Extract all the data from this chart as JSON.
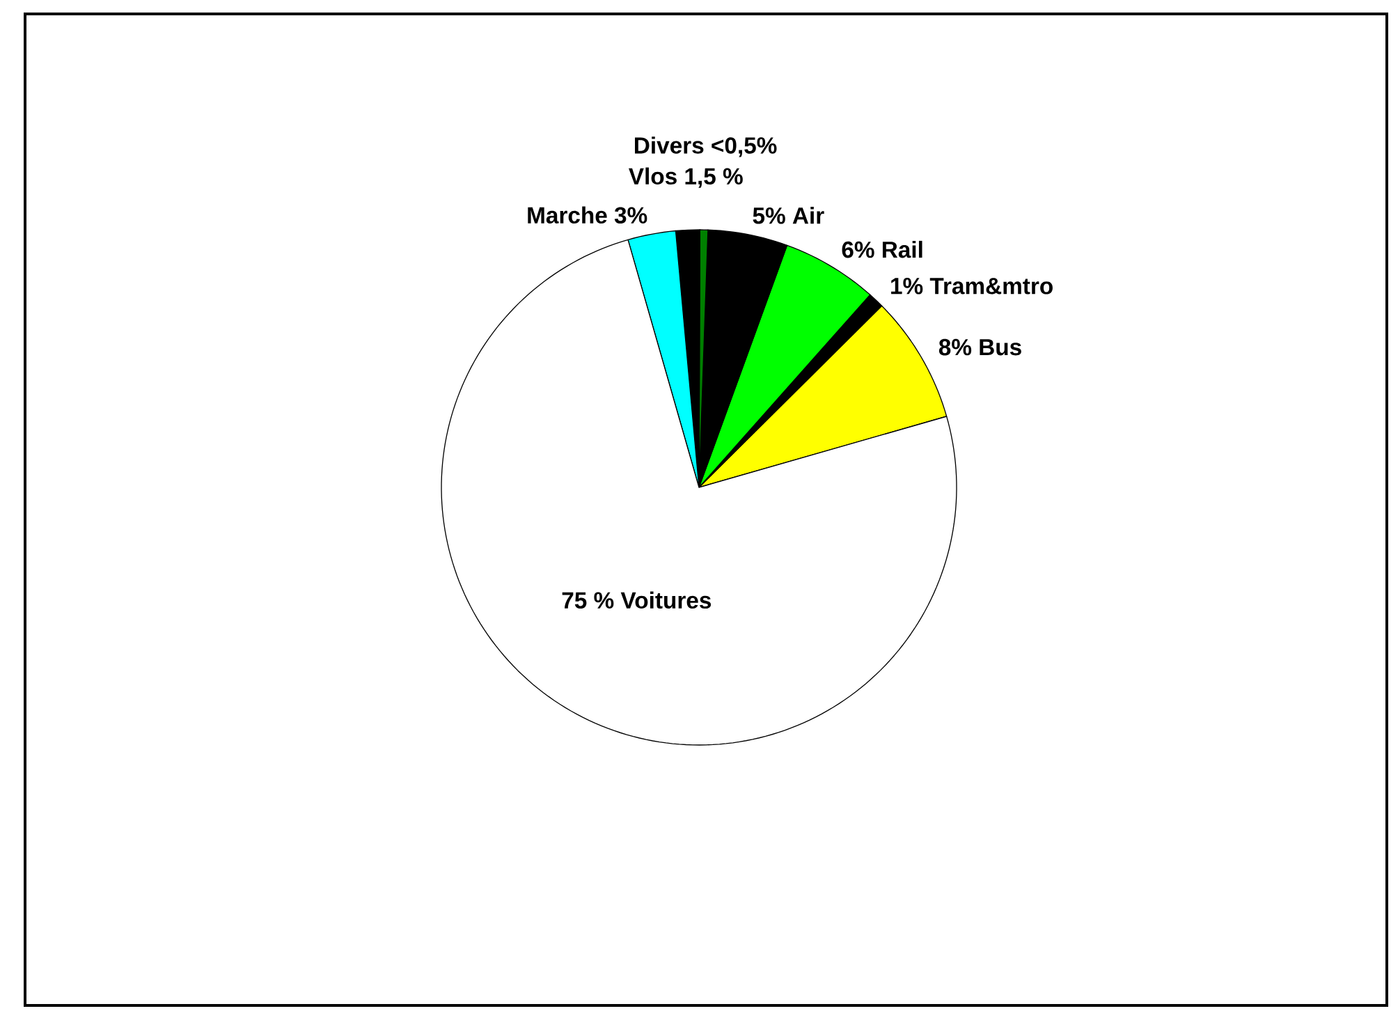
{
  "chart_data": {
    "type": "pie",
    "categories": [
      "8% Bus",
      "1% Tram&mtro",
      "6% Rail",
      "5% Air",
      "Divers <0,5%",
      "Vlos 1,5 %",
      "Marche 3%",
      "75 % Voitures"
    ],
    "values": [
      8,
      1,
      6,
      5,
      0.5,
      1.5,
      3,
      75
    ],
    "colors": [
      "#ffff00",
      "#000000",
      "#00ff00",
      "#000000",
      "#008000",
      "#000000",
      "#00ffff",
      "#ffffff"
    ]
  }
}
